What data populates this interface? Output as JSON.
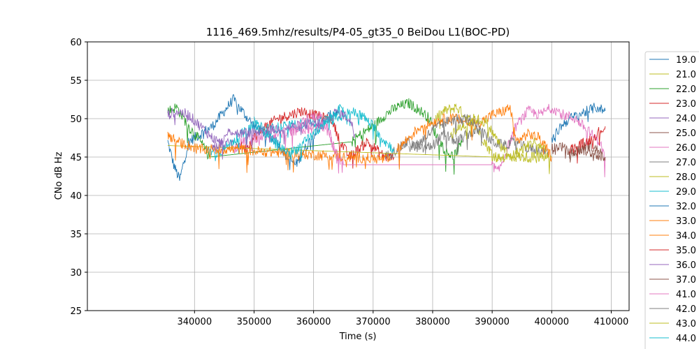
{
  "chart_data": {
    "type": "line",
    "title": "1116_469.5mhz/results/P4-05_gt35_0 BeiDou L1(BOC-PD)",
    "xlabel": "Time (s)",
    "ylabel": "CNo dB Hz",
    "xlim": [
      322000,
      413000
    ],
    "ylim": [
      25,
      60
    ],
    "xticks": [
      340000,
      350000,
      360000,
      370000,
      380000,
      390000,
      400000,
      410000
    ],
    "xtick_labels": [
      "340000",
      "350000",
      "360000",
      "370000",
      "380000",
      "390000",
      "400000",
      "410000"
    ],
    "yticks": [
      25,
      30,
      35,
      40,
      45,
      50,
      55,
      60
    ],
    "ytick_labels": [
      "25",
      "30",
      "35",
      "40",
      "45",
      "50",
      "55",
      "60"
    ],
    "grid": true,
    "legend_position": "right-outside",
    "series": [
      {
        "name": "19.0",
        "color": "#1f77b4",
        "x": [
          335500,
          336500,
          337500,
          339000,
          341000,
          343000,
          345000,
          346500,
          348000,
          350000,
          352000,
          354000,
          355500,
          357000,
          358500,
          360000,
          362000,
          364000
        ],
        "y": [
          47,
          44,
          42,
          47,
          48,
          49,
          51,
          52.5,
          51,
          49,
          48,
          47,
          45,
          44,
          46,
          48,
          50,
          51
        ]
      },
      {
        "name": "21.0",
        "color": "#bcbd22",
        "x": [
          380500,
          382000,
          384000,
          386000,
          388000,
          389500,
          391000
        ],
        "y": [
          50,
          51,
          51.5,
          50,
          48,
          46,
          44.5
        ]
      },
      {
        "name": "22.0",
        "color": "#2ca02c",
        "x": [
          335500,
          337000,
          339000,
          341000,
          342500,
          366500,
          368000,
          370000,
          372000,
          374000,
          376000,
          378000,
          379500,
          380500,
          382000,
          383500,
          385000
        ],
        "y": [
          51,
          51.5,
          49,
          47,
          45,
          47,
          48,
          49,
          50.5,
          51.5,
          52,
          51,
          50,
          48,
          46,
          45,
          47
        ]
      },
      {
        "name": "23.0",
        "color": "#d62728",
        "x": [
          347000,
          348500,
          350000,
          352000,
          354000,
          356000,
          358000,
          360000,
          362000,
          363000,
          364500,
          366000,
          367500,
          369000,
          370500,
          372000,
          373500
        ],
        "y": [
          47,
          46,
          47.5,
          49,
          50,
          50.5,
          51,
          50.5,
          50,
          50,
          47,
          45,
          46,
          47,
          46,
          45,
          45
        ]
      },
      {
        "name": "24.0",
        "color": "#9467bd",
        "x": [
          335500,
          337000,
          339000,
          341000,
          343000,
          345000,
          346500
        ],
        "y": [
          50.5,
          51,
          50.5,
          49,
          47.5,
          46.5,
          47
        ]
      },
      {
        "name": "25.0",
        "color": "#8c564b",
        "x": [
          400000,
          401500,
          403000,
          404500,
          406000,
          407500,
          408500
        ],
        "y": [
          46,
          46.5,
          45.5,
          46,
          46.5,
          46,
          45.5
        ]
      },
      {
        "name": "26.0",
        "color": "#e377c2",
        "x": [
          346500,
          348000,
          350000,
          362000,
          363500,
          365000,
          390000,
          391000,
          392500,
          394000,
          396000,
          398000,
          400000,
          402000,
          404000,
          406000,
          408000,
          409000
        ],
        "y": [
          46,
          47,
          47.5,
          49,
          46,
          44,
          44,
          43,
          46,
          49,
          51,
          50.5,
          51.5,
          50.5,
          50,
          48.5,
          47,
          45
        ]
      },
      {
        "name": "27.0",
        "color": "#7f7f7f",
        "x": [
          372000,
          374000,
          376000,
          378000,
          380000,
          382000,
          384000,
          386000,
          388000,
          390000,
          392000,
          394000,
          396000,
          398000,
          399500
        ],
        "y": [
          45,
          46,
          47,
          46,
          46.5,
          48,
          47,
          48,
          48.5,
          47,
          46.5,
          47,
          46,
          46,
          45.5
        ]
      },
      {
        "name": "28.0",
        "color": "#bcbd22",
        "x": [
          335500,
          390500,
          399000,
          400000
        ],
        "y": [
          46.5,
          45,
          45,
          45
        ]
      },
      {
        "name": "29.0",
        "color": "#17becf",
        "x": [
          342000,
          343500,
          345000,
          347000,
          349000,
          350000,
          351000,
          364000,
          366000,
          368000,
          370000,
          372000,
          373500
        ],
        "y": [
          46,
          45.5,
          46,
          47.5,
          48.5,
          49,
          48.5,
          50,
          51,
          50.5,
          49,
          47,
          46
        ]
      },
      {
        "name": "32.0",
        "color": "#1f77b4",
        "x": [
          400000,
          401500,
          403000,
          404500,
          406000,
          407500,
          409000
        ],
        "y": [
          47,
          49,
          50,
          50.5,
          51,
          51.5,
          51
        ]
      },
      {
        "name": "33.0",
        "color": "#ff7f0e",
        "x": [
          335500,
          337000,
          339000,
          341000,
          342500,
          344000,
          346000,
          348000,
          350000,
          352000,
          354000,
          356000,
          358000,
          360000,
          362000,
          364000,
          366000,
          368000,
          370000,
          372000,
          373000
        ],
        "y": [
          48,
          47,
          46.5,
          46,
          46,
          46,
          46,
          46,
          45.8,
          45.7,
          45.6,
          45.5,
          45.4,
          45.3,
          45.2,
          45.1,
          45.0,
          44.9,
          44.8,
          44.7,
          44.6
        ]
      },
      {
        "name": "34.0",
        "color": "#ff7f0e",
        "x": [
          374000,
          376000,
          378000,
          380000,
          382000,
          384000,
          386000,
          388000,
          390000,
          392000,
          393000,
          394000,
          396000,
          398000,
          400000
        ],
        "y": [
          46,
          47.5,
          49,
          49.5,
          50,
          50,
          49.5,
          49.5,
          50.5,
          51,
          51.5,
          47,
          48,
          47.5,
          45
        ]
      },
      {
        "name": "35.0",
        "color": "#d62728",
        "x": [
          403000,
          404500,
          406000,
          407500,
          409000
        ],
        "y": [
          46,
          46.5,
          47,
          48,
          49
        ]
      },
      {
        "name": "36.0",
        "color": "#9467bd",
        "x": [
          343000,
          344500,
          346000,
          347500,
          362000,
          364000,
          366000,
          367000
        ],
        "y": [
          46,
          47,
          48.5,
          48,
          49.5,
          51,
          50,
          48
        ]
      },
      {
        "name": "37.0",
        "color": "#8c564b",
        "x": [
          403000,
          405000,
          407000,
          409000
        ],
        "y": [
          45.5,
          46,
          45.5,
          45
        ]
      },
      {
        "name": "41.0",
        "color": "#e377c2",
        "x": [
          356000,
          357500,
          359000,
          360500,
          362000,
          363500,
          364500
        ],
        "y": [
          48,
          49,
          50,
          50.5,
          50,
          46,
          44
        ]
      },
      {
        "name": "42.0",
        "color": "#7f7f7f",
        "x": [
          376000,
          378000,
          380000,
          382000,
          384000,
          386000,
          388000
        ],
        "y": [
          46,
          47,
          48.5,
          49.5,
          50,
          50,
          49
        ]
      },
      {
        "name": "43.0",
        "color": "#bcbd22",
        "x": [
          383000,
          385000,
          387000,
          389000,
          391000,
          393000,
          395000,
          397000,
          399000
        ],
        "y": [
          48,
          49,
          50,
          49.5,
          47,
          45,
          46,
          47,
          46
        ]
      },
      {
        "name": "44.0",
        "color": "#17becf",
        "x": [
          350000,
          352000,
          354000,
          356000,
          358000,
          360000,
          362000,
          364000,
          365000
        ],
        "y": [
          50,
          48,
          46.5,
          45.5,
          46.5,
          48,
          49.5,
          51,
          51.5
        ]
      }
    ]
  }
}
